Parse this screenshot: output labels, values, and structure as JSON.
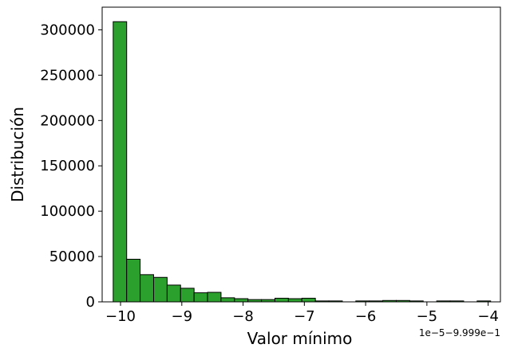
{
  "chart_data": {
    "type": "bar",
    "xlabel": "Valor mínimo",
    "ylabel": "Distribución",
    "x_offset_label": "1e−5−9.999e−1",
    "xlim": [
      -10.3,
      -3.8
    ],
    "ylim": [
      0,
      325000
    ],
    "grid": false,
    "bar_color": "#2ca02c",
    "edge_color": "#000000",
    "x_ticks": [
      -10,
      -9,
      -8,
      -7,
      -6,
      -5,
      -4
    ],
    "x_tick_labels": [
      "−10",
      "−9",
      "−8",
      "−7",
      "−6",
      "−5",
      "−4"
    ],
    "y_ticks": [
      0,
      50000,
      100000,
      150000,
      200000,
      250000,
      300000
    ],
    "y_tick_labels": [
      "0",
      "50000",
      "100000",
      "150000",
      "200000",
      "250000",
      "300000"
    ],
    "bin_edges": [
      -10.12,
      -9.9,
      -9.68,
      -9.46,
      -9.24,
      -9.02,
      -8.8,
      -8.58,
      -8.36,
      -8.14,
      -7.92,
      -7.7,
      -7.48,
      -7.26,
      -7.04,
      -6.82,
      -6.6,
      -6.38,
      -6.16,
      -5.94,
      -5.72,
      -5.5,
      -5.28,
      -5.06,
      -4.84,
      -4.62,
      -4.4,
      -4.18,
      -3.96
    ],
    "values": [
      309000,
      47000,
      30000,
      27000,
      18500,
      15000,
      10000,
      10500,
      4500,
      3500,
      2500,
      2500,
      4000,
      3500,
      4000,
      1000,
      1000,
      0,
      1000,
      1000,
      1500,
      1500,
      1000,
      0,
      1000,
      1000,
      0,
      1000
    ]
  }
}
